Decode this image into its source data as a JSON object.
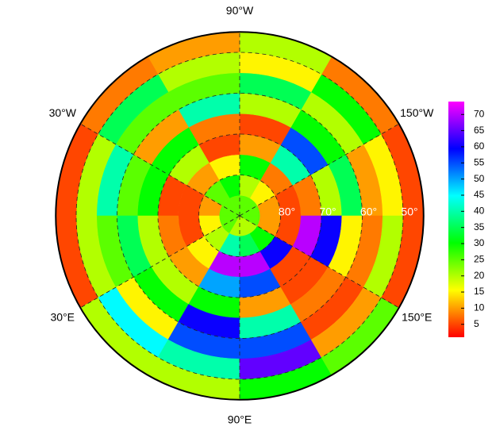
{
  "chart_data": {
    "type": "polar-grid",
    "lon_ticks": [
      {
        "value": -90,
        "label": "90°W"
      },
      {
        "value": -30,
        "label": "30°W"
      },
      {
        "value": -150,
        "label": "150°W"
      },
      {
        "value": 30,
        "label": "30°E"
      },
      {
        "value": 150,
        "label": "150°E"
      },
      {
        "value": 90,
        "label": "90°E"
      }
    ],
    "lat_ticks": [
      {
        "value": 80,
        "label": "80°"
      },
      {
        "value": 70,
        "label": "70°"
      },
      {
        "value": 60,
        "label": "60°"
      },
      {
        "value": 50,
        "label": "50°"
      }
    ],
    "lat_edges": [
      90,
      85,
      80,
      75,
      70,
      65,
      60,
      55,
      50,
      45
    ],
    "lon_edges": [
      -180,
      -150,
      -120,
      -90,
      -60,
      -30,
      0,
      30,
      60,
      90,
      120,
      150,
      180
    ],
    "values": [
      [
        25,
        10,
        5,
        8,
        20,
        35,
        10,
        15,
        5
      ],
      [
        25,
        15,
        8,
        40,
        55,
        30,
        20,
        30,
        8
      ],
      [
        25,
        20,
        30,
        10,
        5,
        20,
        35,
        15,
        20
      ],
      [
        25,
        30,
        15,
        5,
        8,
        40,
        25,
        20,
        10
      ],
      [
        25,
        25,
        10,
        20,
        30,
        10,
        25,
        35,
        8
      ],
      [
        25,
        10,
        5,
        5,
        30,
        25,
        40,
        20,
        5
      ],
      [
        25,
        15,
        5,
        8,
        20,
        35,
        25,
        20,
        5
      ],
      [
        25,
        20,
        15,
        10,
        20,
        30,
        15,
        45,
        20
      ],
      [
        20,
        40,
        70,
        50,
        30,
        60,
        55,
        40,
        20
      ],
      [
        20,
        35,
        70,
        55,
        10,
        40,
        55,
        65,
        30
      ],
      [
        20,
        30,
        60,
        5,
        5,
        8,
        5,
        10,
        25
      ],
      [
        25,
        10,
        5,
        70,
        60,
        15,
        8,
        20,
        5
      ]
    ],
    "clim": [
      1,
      74
    ],
    "cticks": [
      5,
      10,
      15,
      20,
      25,
      30,
      35,
      40,
      45,
      50,
      55,
      60,
      65,
      70
    ]
  }
}
